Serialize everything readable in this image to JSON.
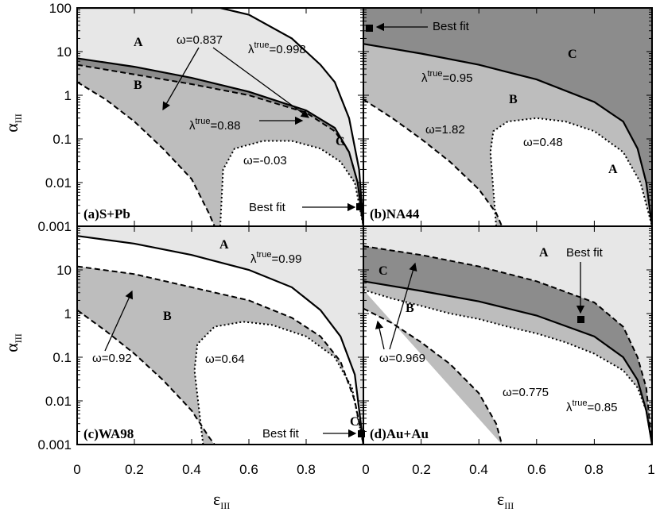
{
  "axes": {
    "xlabel": "ε",
    "xlabel_sub": "III",
    "ylabel": "α",
    "ylabel_sub": "III",
    "y_ticks": [
      "100",
      "10",
      "1",
      "0.1",
      "0.01",
      "0.001"
    ],
    "x_ticks_left": [
      "0",
      "0.2",
      "0.4",
      "0.6",
      "0.8"
    ],
    "x_ticks_right": [
      "0",
      "0.2",
      "0.4",
      "0.6",
      "0.8",
      "1"
    ]
  },
  "colors": {
    "region_A": "#e7e7e7",
    "region_B": "#bdbdbd",
    "region_C": "#8c8c8c"
  },
  "chart_data": [
    {
      "type": "line",
      "panel": "(a)S+Pb",
      "xlim": [
        0,
        1
      ],
      "ylim": [
        0.001,
        100
      ],
      "yscale": "log",
      "curves": [
        {
          "label": "λtrue=0.998",
          "style": "solid",
          "points": [
            [
              0,
              100
            ],
            [
              0.5,
              100
            ],
            [
              0.6,
              70
            ],
            [
              0.75,
              20
            ],
            [
              0.85,
              5
            ],
            [
              0.9,
              2
            ],
            [
              0.95,
              0.3
            ],
            [
              0.985,
              0.02
            ],
            [
              1,
              0.001
            ]
          ]
        },
        {
          "label": "λtrue=0.88",
          "style": "solid",
          "points": [
            [
              0,
              7
            ],
            [
              0.2,
              4.5
            ],
            [
              0.4,
              2.5
            ],
            [
              0.6,
              1.2
            ],
            [
              0.8,
              0.45
            ],
            [
              0.9,
              0.18
            ],
            [
              0.95,
              0.05
            ],
            [
              0.98,
              0.01
            ],
            [
              1,
              0.001
            ]
          ]
        },
        {
          "label": "ω=0.837",
          "style": "dashed",
          "points": [
            [
              0,
              5
            ],
            [
              0.2,
              3
            ],
            [
              0.4,
              1.8
            ],
            [
              0.6,
              1
            ],
            [
              0.8,
              0.4
            ],
            [
              0.9,
              0.15
            ],
            [
              0.95,
              0.05
            ],
            [
              0.98,
              0.01
            ],
            [
              1,
              0.001
            ]
          ]
        },
        {
          "label": "",
          "style": "dashed",
          "points": [
            [
              0,
              2
            ],
            [
              0.1,
              0.8
            ],
            [
              0.2,
              0.25
            ],
            [
              0.3,
              0.06
            ],
            [
              0.4,
              0.012
            ],
            [
              0.46,
              0.002
            ],
            [
              0.48,
              0.001
            ]
          ]
        },
        {
          "label": "ω=-0.03",
          "style": "dotted",
          "points": [
            [
              0.5,
              0.001
            ],
            [
              0.51,
              0.02
            ],
            [
              0.55,
              0.06
            ],
            [
              0.65,
              0.09
            ],
            [
              0.75,
              0.09
            ],
            [
              0.85,
              0.06
            ],
            [
              0.92,
              0.03
            ],
            [
              0.97,
              0.01
            ],
            [
              1,
              0.001
            ]
          ]
        }
      ],
      "regions": [
        "A",
        "B",
        "C"
      ],
      "annotations": [
        "ω=0.837",
        "λtrue=0.998",
        "λtrue=0.88",
        "ω=-0.03",
        "Best fit"
      ],
      "best_fit": {
        "x": 1.0,
        "y": 0.003
      }
    },
    {
      "type": "line",
      "panel": "(b)NA44",
      "xlim": [
        0,
        1
      ],
      "ylim": [
        0.001,
        100
      ],
      "yscale": "log",
      "curves": [
        {
          "label": "λtrue=0.95",
          "style": "solid",
          "points": [
            [
              0,
              15
            ],
            [
              0.2,
              9
            ],
            [
              0.4,
              5
            ],
            [
              0.6,
              2.3
            ],
            [
              0.8,
              0.7
            ],
            [
              0.9,
              0.25
            ],
            [
              0.95,
              0.06
            ],
            [
              0.98,
              0.01
            ],
            [
              1,
              0.001
            ]
          ]
        },
        {
          "label": "ω=1.82",
          "style": "dashed",
          "points": [
            [
              0,
              0.8
            ],
            [
              0.1,
              0.3
            ],
            [
              0.2,
              0.1
            ],
            [
              0.3,
              0.03
            ],
            [
              0.4,
              0.007
            ],
            [
              0.46,
              0.002
            ],
            [
              0.48,
              0.001
            ]
          ]
        },
        {
          "label": "ω=0.48",
          "style": "dotted",
          "points": [
            [
              0.46,
              0.001
            ],
            [
              0.44,
              0.05
            ],
            [
              0.45,
              0.15
            ],
            [
              0.5,
              0.25
            ],
            [
              0.6,
              0.3
            ],
            [
              0.7,
              0.25
            ],
            [
              0.8,
              0.15
            ],
            [
              0.9,
              0.05
            ],
            [
              0.96,
              0.01
            ],
            [
              1,
              0.001
            ]
          ]
        }
      ],
      "regions": [
        "A",
        "B",
        "C"
      ],
      "annotations": [
        "Best fit",
        "λtrue=0.95",
        "ω=1.82",
        "ω=0.48"
      ],
      "best_fit": {
        "x": 0.01,
        "y": 40
      }
    },
    {
      "type": "line",
      "panel": "(c)WA98",
      "xlim": [
        0,
        1
      ],
      "ylim": [
        0.001,
        100
      ],
      "yscale": "log",
      "curves": [
        {
          "label": "λtrue=0.99",
          "style": "solid",
          "points": [
            [
              0,
              60
            ],
            [
              0.2,
              40
            ],
            [
              0.4,
              22
            ],
            [
              0.6,
              10
            ],
            [
              0.75,
              4
            ],
            [
              0.85,
              1.2
            ],
            [
              0.92,
              0.3
            ],
            [
              0.97,
              0.04
            ],
            [
              1,
              0.001
            ]
          ]
        },
        {
          "label": "ω=0.92",
          "style": "dashed",
          "points": [
            [
              0,
              12
            ],
            [
              0.2,
              8
            ],
            [
              0.4,
              4
            ],
            [
              0.6,
              2
            ],
            [
              0.75,
              0.8
            ],
            [
              0.85,
              0.3
            ],
            [
              0.92,
              0.08
            ],
            [
              0.97,
              0.01
            ],
            [
              1,
              0.001
            ]
          ]
        },
        {
          "label": "",
          "style": "dashed",
          "points": [
            [
              0,
              1.2
            ],
            [
              0.1,
              0.4
            ],
            [
              0.2,
              0.12
            ],
            [
              0.3,
              0.03
            ],
            [
              0.4,
              0.006
            ],
            [
              0.46,
              0.0015
            ],
            [
              0.48,
              0.001
            ]
          ]
        },
        {
          "label": "ω=0.64",
          "style": "dotted",
          "points": [
            [
              0.44,
              0.001
            ],
            [
              0.41,
              0.05
            ],
            [
              0.42,
              0.2
            ],
            [
              0.48,
              0.5
            ],
            [
              0.58,
              0.65
            ],
            [
              0.68,
              0.55
            ],
            [
              0.8,
              0.3
            ],
            [
              0.9,
              0.1
            ],
            [
              0.96,
              0.02
            ],
            [
              1,
              0.001
            ]
          ]
        }
      ],
      "regions": [
        "A",
        "B",
        "C"
      ],
      "annotations": [
        "λtrue=0.99",
        "ω=0.92",
        "ω=0.64",
        "Best fit"
      ],
      "best_fit": {
        "x": 1.0,
        "y": 0.0015
      }
    },
    {
      "type": "line",
      "panel": "(d)Au+Au",
      "xlim": [
        0,
        1
      ],
      "ylim": [
        0.001,
        100
      ],
      "yscale": "log",
      "curves": [
        {
          "label": "ω=0.969",
          "style": "dashed",
          "points": [
            [
              0,
              35
            ],
            [
              0.2,
              22
            ],
            [
              0.4,
              12
            ],
            [
              0.6,
              5.5
            ],
            [
              0.8,
              1.8
            ],
            [
              0.9,
              0.5
            ],
            [
              0.95,
              0.1
            ],
            [
              0.98,
              0.02
            ],
            [
              1,
              0.001
            ]
          ]
        },
        {
          "label": "λtrue=0.85",
          "style": "solid",
          "points": [
            [
              0,
              5.5
            ],
            [
              0.2,
              3.3
            ],
            [
              0.4,
              1.9
            ],
            [
              0.6,
              0.9
            ],
            [
              0.8,
              0.3
            ],
            [
              0.9,
              0.1
            ],
            [
              0.95,
              0.03
            ],
            [
              0.98,
              0.006
            ],
            [
              1,
              0.001
            ]
          ]
        },
        {
          "label": "",
          "style": "dashed",
          "points": [
            [
              0,
              1.3
            ],
            [
              0.1,
              0.6
            ],
            [
              0.2,
              0.22
            ],
            [
              0.3,
              0.07
            ],
            [
              0.4,
              0.015
            ],
            [
              0.46,
              0.003
            ],
            [
              0.48,
              0.001
            ]
          ]
        },
        {
          "label": "ω=0.775",
          "style": "dotted",
          "points": [
            [
              0.0,
              3.5
            ],
            [
              0.1,
              2.2
            ],
            [
              0.2,
              1.5
            ],
            [
              0.3,
              1.0
            ],
            [
              0.4,
              0.75
            ],
            [
              0.5,
              0.5
            ],
            [
              0.6,
              0.35
            ],
            [
              0.7,
              0.22
            ],
            [
              0.8,
              0.12
            ],
            [
              0.9,
              0.05
            ],
            [
              0.95,
              0.02
            ],
            [
              0.98,
              0.006
            ],
            [
              1,
              0.001
            ]
          ]
        }
      ],
      "regions": [
        "A",
        "B",
        "C"
      ],
      "annotations": [
        "Best fit",
        "ω=0.969",
        "ω=0.775",
        "λtrue=0.85"
      ],
      "best_fit": {
        "x": 0.74,
        "y": 0.7
      }
    }
  ],
  "text": {
    "a_title": "(a)S+Pb",
    "b_title": "(b)NA44",
    "c_title": "(c)WA98",
    "d_title": "(d)Au+Au",
    "a_w": "ω=0.837",
    "a_l1_pre": "λ",
    "a_l1_sup": "true",
    "a_l1_val": "=0.998",
    "a_l2_pre": "λ",
    "a_l2_sup": "true",
    "a_l2_val": "=0.88",
    "a_w2": "ω=-0.03",
    "best_fit": "Best fit",
    "b_l_pre": "λ",
    "b_l_sup": "true",
    "b_l_val": "=0.95",
    "b_w1": "ω=1.82",
    "b_w2": "ω=0.48",
    "c_l_pre": "λ",
    "c_l_sup": "true",
    "c_l_val": "=0.99",
    "c_w1": "ω=0.92",
    "c_w2": "ω=0.64",
    "d_w1": "ω=0.969",
    "d_w2": "ω=0.775",
    "d_l_pre": "λ",
    "d_l_sup": "true",
    "d_l_val": "=0.85",
    "reg_A": "A",
    "reg_B": "B",
    "reg_C": "C"
  }
}
